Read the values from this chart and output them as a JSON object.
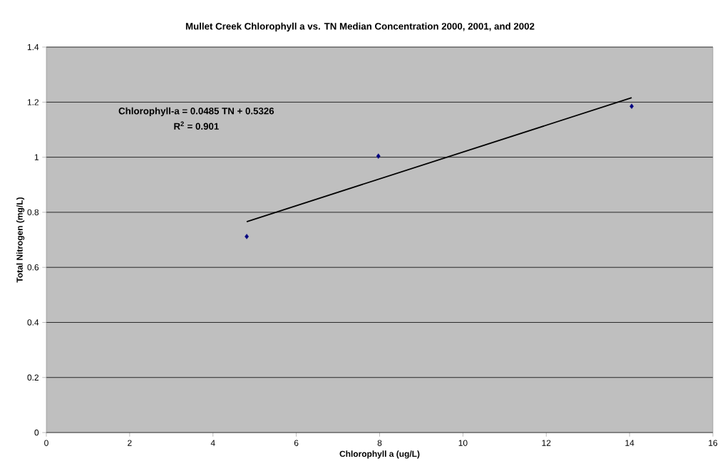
{
  "chart_data": {
    "type": "scatter",
    "title": "Mullet Creek Chlorophyll a vs. TN Median Concentration 2000, 2001, and 2002",
    "xlabel": "Chlorophyll a (ug/L)",
    "ylabel": "Total Nitrogen (mg/L)",
    "series": [
      {
        "color": "#000080",
        "marker": "diamond",
        "x": [
          4.81,
          7.97,
          14.05
        ],
        "values": [
          0.712,
          1.004,
          1.185
        ]
      },
      {
        "type": "line",
        "color": "#000000",
        "marker": "none",
        "line_style": "solid",
        "x": [
          4.81,
          14.05
        ],
        "values": [
          0.766,
          1.216
        ]
      }
    ],
    "annotations": [
      "Chlorophyll-a = 0.0485 TN + 0.5326",
      "R$^{2}$ = 0.901"
    ],
    "xlim": [
      0,
      16
    ],
    "xticks": [
      0,
      2,
      4,
      6,
      8,
      10,
      12,
      14,
      16
    ],
    "ylim": [
      0,
      1.4
    ],
    "yticks": [
      0,
      {
        "value": 0.2,
        "label": "0.2"
      },
      {
        "value": 0.4,
        "label": "0.4"
      },
      {
        "value": 0.6,
        "label": "0.6"
      },
      {
        "value": 0.8,
        "label": "0.8"
      },
      1,
      {
        "value": 1.2,
        "label": "1.2"
      },
      {
        "value": 1.4,
        "label": "1.4"
      }
    ],
    "grid": "y"
  }
}
